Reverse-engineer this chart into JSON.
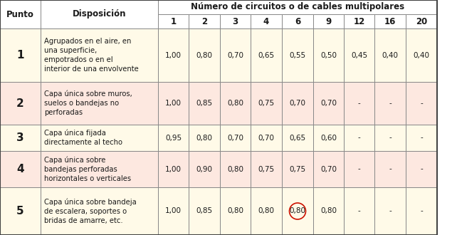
{
  "header_top": "Número de circuitos o de cables multipolares",
  "rows": [
    {
      "punto": "1",
      "disposicion": "Agrupados en el aire, en\nuna superficie,\nempotrados o en el\ninterior de una envolvente",
      "values": [
        "1,00",
        "0,80",
        "0,70",
        "0,65",
        "0,55",
        "0,50",
        "0,45",
        "0,40",
        "0,40"
      ],
      "bg": "#fffae8"
    },
    {
      "punto": "2",
      "disposicion": "Capa única sobre muros,\nsuelos o bandejas no\nperforadas",
      "values": [
        "1,00",
        "0,85",
        "0,80",
        "0,75",
        "0,70",
        "0,70",
        "-",
        "-",
        "-"
      ],
      "bg": "#fde8e0"
    },
    {
      "punto": "3",
      "disposicion": "Capa única fijada\ndirectamente al techo",
      "values": [
        "0,95",
        "0,80",
        "0,70",
        "0,70",
        "0,65",
        "0,60",
        "-",
        "-",
        "-"
      ],
      "bg": "#fffae8"
    },
    {
      "punto": "4",
      "disposicion": "Capa única sobre\nbandejas perforadas\nhorizontales o verticales",
      "values": [
        "1,00",
        "0,90",
        "0,80",
        "0,75",
        "0,75",
        "0,70",
        "-",
        "-",
        "-"
      ],
      "bg": "#fde8e0"
    },
    {
      "punto": "5",
      "disposicion": "Capa única sobre bandeja\nde escalera, soportes o\nbridas de amarre, etc.",
      "values": [
        "1,00",
        "0,85",
        "0,80",
        "0,80",
        "0,80",
        "0,80",
        "-",
        "-",
        "-"
      ],
      "bg": "#fffae8",
      "circle_col": 4
    }
  ],
  "num_labels": [
    "1",
    "2",
    "3",
    "4",
    "6",
    "9",
    "12",
    "16",
    "20"
  ],
  "header_bg": "#ffffff",
  "border_color": "#888888",
  "text_color": "#1a1a1a",
  "figsize": [
    6.42,
    3.3
  ],
  "dpi": 100
}
